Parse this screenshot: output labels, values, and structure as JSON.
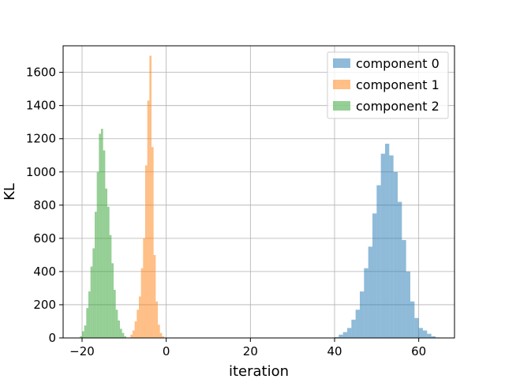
{
  "chart_data": {
    "type": "histogram",
    "xlabel": "iteration",
    "ylabel": "KL",
    "xlim": [
      -24.5,
      68.5
    ],
    "ylim": [
      0,
      1760
    ],
    "xticks": [
      -20,
      0,
      20,
      40,
      60
    ],
    "yticks": [
      0,
      200,
      400,
      600,
      800,
      1000,
      1200,
      1400,
      1600
    ],
    "grid": true,
    "legend_position": "top-right",
    "bin_width": 1.0,
    "series": [
      {
        "name": "component 0",
        "color": "#1f77b4",
        "bins": [
          {
            "x0": 40.0,
            "count": 5
          },
          {
            "x0": 41.0,
            "count": 20
          },
          {
            "x0": 42.0,
            "count": 35
          },
          {
            "x0": 43.0,
            "count": 60
          },
          {
            "x0": 44.0,
            "count": 110
          },
          {
            "x0": 45.0,
            "count": 170
          },
          {
            "x0": 46.0,
            "count": 280
          },
          {
            "x0": 47.0,
            "count": 420
          },
          {
            "x0": 48.0,
            "count": 550
          },
          {
            "x0": 49.0,
            "count": 750
          },
          {
            "x0": 50.0,
            "count": 920
          },
          {
            "x0": 51.0,
            "count": 1110
          },
          {
            "x0": 52.0,
            "count": 1170
          },
          {
            "x0": 53.0,
            "count": 1100
          },
          {
            "x0": 54.0,
            "count": 1000
          },
          {
            "x0": 55.0,
            "count": 820
          },
          {
            "x0": 56.0,
            "count": 590
          },
          {
            "x0": 57.0,
            "count": 400
          },
          {
            "x0": 58.0,
            "count": 220
          },
          {
            "x0": 59.0,
            "count": 120
          },
          {
            "x0": 60.0,
            "count": 60
          },
          {
            "x0": 61.0,
            "count": 45
          },
          {
            "x0": 62.0,
            "count": 25
          },
          {
            "x0": 63.0,
            "count": 10
          },
          {
            "x0": 64.0,
            "count": 3
          }
        ]
      },
      {
        "name": "component 1",
        "color": "#ff7f0e",
        "bins": [
          {
            "x0": -8.5,
            "count": 20
          },
          {
            "x0": -8.0,
            "count": 45
          },
          {
            "x0": -7.5,
            "count": 100
          },
          {
            "x0": -7.0,
            "count": 170
          },
          {
            "x0": -6.5,
            "count": 250
          },
          {
            "x0": -6.0,
            "count": 420
          },
          {
            "x0": -5.5,
            "count": 600
          },
          {
            "x0": -5.0,
            "count": 1040
          },
          {
            "x0": -4.5,
            "count": 1430
          },
          {
            "x0": -4.0,
            "count": 1700
          },
          {
            "x0": -3.5,
            "count": 1150
          },
          {
            "x0": -3.0,
            "count": 500
          },
          {
            "x0": -2.5,
            "count": 220
          },
          {
            "x0": -2.0,
            "count": 80
          },
          {
            "x0": -1.5,
            "count": 30
          },
          {
            "x0": -1.0,
            "count": 10
          }
        ]
      },
      {
        "name": "component 2",
        "color": "#2ca02c",
        "bins": [
          {
            "x0": -20.5,
            "count": 10
          },
          {
            "x0": -20.0,
            "count": 40
          },
          {
            "x0": -19.5,
            "count": 75
          },
          {
            "x0": -19.0,
            "count": 180
          },
          {
            "x0": -18.5,
            "count": 280
          },
          {
            "x0": -18.0,
            "count": 430
          },
          {
            "x0": -17.5,
            "count": 540
          },
          {
            "x0": -17.0,
            "count": 760
          },
          {
            "x0": -16.5,
            "count": 1000
          },
          {
            "x0": -16.0,
            "count": 1230
          },
          {
            "x0": -15.5,
            "count": 1260
          },
          {
            "x0": -15.0,
            "count": 1130
          },
          {
            "x0": -14.5,
            "count": 900
          },
          {
            "x0": -14.0,
            "count": 790
          },
          {
            "x0": -13.5,
            "count": 620
          },
          {
            "x0": -13.0,
            "count": 450
          },
          {
            "x0": -12.5,
            "count": 290
          },
          {
            "x0": -12.0,
            "count": 170
          },
          {
            "x0": -11.5,
            "count": 105
          },
          {
            "x0": -11.0,
            "count": 55
          },
          {
            "x0": -10.5,
            "count": 30
          },
          {
            "x0": -10.0,
            "count": 10
          }
        ]
      }
    ]
  }
}
